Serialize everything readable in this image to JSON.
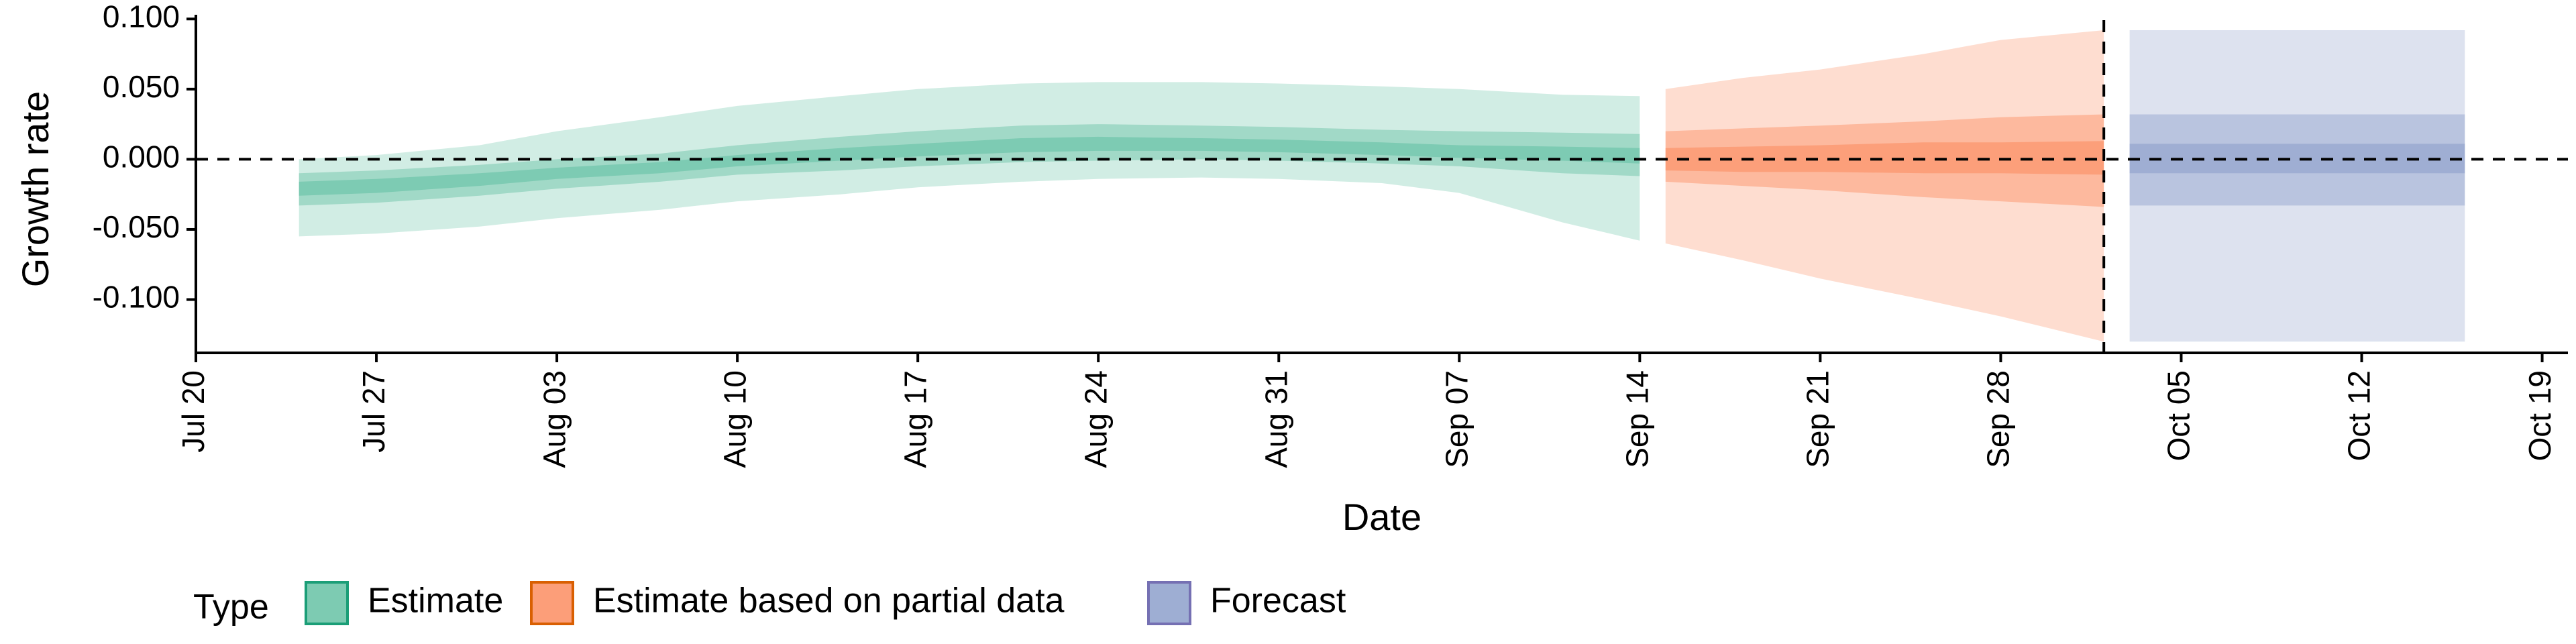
{
  "chart_data": {
    "type": "area",
    "xlabel": "Date",
    "ylabel": "Growth rate",
    "xlim": [
      "2020-07-20",
      "2020-10-20"
    ],
    "ylim": [
      -0.138,
      0.103
    ],
    "x_ticks": [
      {
        "date": "2020-07-20",
        "label": "Jul 20"
      },
      {
        "date": "2020-07-27",
        "label": "Jul 27"
      },
      {
        "date": "2020-08-03",
        "label": "Aug 03"
      },
      {
        "date": "2020-08-10",
        "label": "Aug 10"
      },
      {
        "date": "2020-08-17",
        "label": "Aug 17"
      },
      {
        "date": "2020-08-24",
        "label": "Aug 24"
      },
      {
        "date": "2020-08-31",
        "label": "Aug 31"
      },
      {
        "date": "2020-09-07",
        "label": "Sep 07"
      },
      {
        "date": "2020-09-14",
        "label": "Sep 14"
      },
      {
        "date": "2020-09-21",
        "label": "Sep 21"
      },
      {
        "date": "2020-09-28",
        "label": "Sep 28"
      },
      {
        "date": "2020-10-05",
        "label": "Oct 05"
      },
      {
        "date": "2020-10-12",
        "label": "Oct 12"
      },
      {
        "date": "2020-10-19",
        "label": "Oct 19"
      }
    ],
    "y_ticks": [
      {
        "value": 0.1,
        "label": "0.100"
      },
      {
        "value": 0.05,
        "label": "0.050"
      },
      {
        "value": 0.0,
        "label": "0.000"
      },
      {
        "value": -0.05,
        "label": "-0.050"
      },
      {
        "value": -0.1,
        "label": "-0.100"
      }
    ],
    "reference_lines": {
      "horizontal": 0.0,
      "vertical_date": "2020-10-02"
    },
    "grid": false,
    "legend": {
      "title": "Type",
      "position": "bottom-left",
      "entries": [
        "Estimate",
        "Estimate based on partial data",
        "Forecast"
      ]
    },
    "series": [
      {
        "name": "Estimate",
        "fill": "#66c2a5",
        "stroke": "#1b9e77",
        "points": [
          {
            "date": "2020-07-24",
            "outer": [
              -0.055,
              0.0
            ],
            "middle": [
              -0.033,
              -0.01
            ],
            "inner": [
              -0.026,
              -0.016
            ]
          },
          {
            "date": "2020-07-27",
            "outer": [
              -0.053,
              0.003
            ],
            "middle": [
              -0.031,
              -0.008
            ],
            "inner": [
              -0.024,
              -0.014
            ]
          },
          {
            "date": "2020-07-31",
            "outer": [
              -0.048,
              0.01
            ],
            "middle": [
              -0.026,
              -0.004
            ],
            "inner": [
              -0.019,
              -0.01
            ]
          },
          {
            "date": "2020-08-03",
            "outer": [
              -0.042,
              0.02
            ],
            "middle": [
              -0.021,
              0.0
            ],
            "inner": [
              -0.014,
              -0.006
            ]
          },
          {
            "date": "2020-08-07",
            "outer": [
              -0.036,
              0.03
            ],
            "middle": [
              -0.016,
              0.004
            ],
            "inner": [
              -0.01,
              -0.002
            ]
          },
          {
            "date": "2020-08-10",
            "outer": [
              -0.03,
              0.038
            ],
            "middle": [
              -0.011,
              0.01
            ],
            "inner": [
              -0.005,
              0.003
            ]
          },
          {
            "date": "2020-08-14",
            "outer": [
              -0.025,
              0.045
            ],
            "middle": [
              -0.008,
              0.016
            ],
            "inner": [
              -0.001,
              0.008
            ]
          },
          {
            "date": "2020-08-17",
            "outer": [
              -0.02,
              0.05
            ],
            "middle": [
              -0.005,
              0.02
            ],
            "inner": [
              0.002,
              0.011
            ]
          },
          {
            "date": "2020-08-21",
            "outer": [
              -0.016,
              0.054
            ],
            "middle": [
              -0.002,
              0.024
            ],
            "inner": [
              0.005,
              0.015
            ]
          },
          {
            "date": "2020-08-24",
            "outer": [
              -0.014,
              0.055
            ],
            "middle": [
              -0.001,
              0.025
            ],
            "inner": [
              0.006,
              0.016
            ]
          },
          {
            "date": "2020-08-28",
            "outer": [
              -0.013,
              0.055
            ],
            "middle": [
              0.0,
              0.024
            ],
            "inner": [
              0.006,
              0.015
            ]
          },
          {
            "date": "2020-08-31",
            "outer": [
              -0.014,
              0.054
            ],
            "middle": [
              -0.001,
              0.023
            ],
            "inner": [
              0.005,
              0.014
            ]
          },
          {
            "date": "2020-09-04",
            "outer": [
              -0.017,
              0.052
            ],
            "middle": [
              -0.003,
              0.021
            ],
            "inner": [
              0.003,
              0.012
            ]
          },
          {
            "date": "2020-09-07",
            "outer": [
              -0.024,
              0.05
            ],
            "middle": [
              -0.005,
              0.02
            ],
            "inner": [
              0.001,
              0.01
            ]
          },
          {
            "date": "2020-09-11",
            "outer": [
              -0.045,
              0.046
            ],
            "middle": [
              -0.01,
              0.019
            ],
            "inner": [
              -0.001,
              0.009
            ]
          },
          {
            "date": "2020-09-14",
            "outer": [
              -0.058,
              0.045
            ],
            "middle": [
              -0.012,
              0.018
            ],
            "inner": [
              -0.003,
              0.008
            ]
          }
        ]
      },
      {
        "name": "Estimate based on partial data",
        "fill": "#fc8d62",
        "stroke": "#d95f02",
        "points": [
          {
            "date": "2020-09-15",
            "outer": [
              -0.06,
              0.05
            ],
            "middle": [
              -0.016,
              0.02
            ],
            "inner": [
              -0.008,
              0.008
            ]
          },
          {
            "date": "2020-09-18",
            "outer": [
              -0.072,
              0.058
            ],
            "middle": [
              -0.019,
              0.022
            ],
            "inner": [
              -0.009,
              0.009
            ]
          },
          {
            "date": "2020-09-21",
            "outer": [
              -0.085,
              0.064
            ],
            "middle": [
              -0.022,
              0.024
            ],
            "inner": [
              -0.009,
              0.01
            ]
          },
          {
            "date": "2020-09-25",
            "outer": [
              -0.1,
              0.075
            ],
            "middle": [
              -0.027,
              0.027
            ],
            "inner": [
              -0.01,
              0.012
            ]
          },
          {
            "date": "2020-09-28",
            "outer": [
              -0.112,
              0.085
            ],
            "middle": [
              -0.03,
              0.03
            ],
            "inner": [
              -0.01,
              0.012
            ]
          },
          {
            "date": "2020-10-02",
            "outer": [
              -0.13,
              0.092
            ],
            "middle": [
              -0.034,
              0.032
            ],
            "inner": [
              -0.011,
              0.013
            ]
          }
        ]
      },
      {
        "name": "Forecast",
        "fill": "#8da0cb",
        "stroke": "#7570b3",
        "points": [
          {
            "date": "2020-10-03",
            "outer": [
              -0.13,
              0.092
            ],
            "middle": [
              -0.033,
              0.032
            ],
            "inner": [
              -0.01,
              0.011
            ]
          },
          {
            "date": "2020-10-16",
            "outer": [
              -0.13,
              0.092
            ],
            "middle": [
              -0.033,
              0.032
            ],
            "inner": [
              -0.01,
              0.011
            ]
          }
        ]
      }
    ]
  }
}
